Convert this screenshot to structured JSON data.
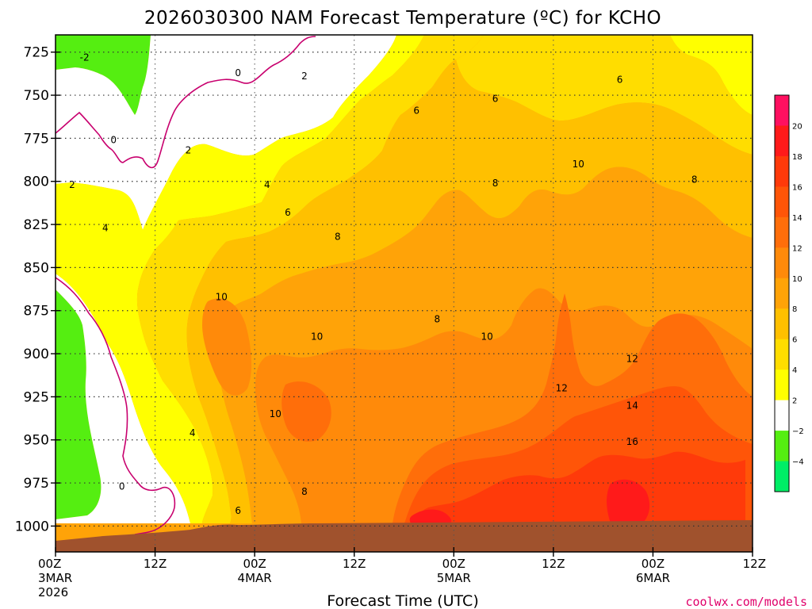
{
  "chart_data": {
    "type": "heatmap",
    "title": "2026030300 NAM Forecast Temperature (ºC) for KCHO",
    "xlabel": "Forecast Time (UTC)",
    "ylabel": "",
    "y_ticks": [
      "725",
      "750",
      "775",
      "800",
      "825",
      "850",
      "875",
      "900",
      "925",
      "950",
      "975",
      "1000"
    ],
    "y_range": [
      715,
      1015
    ],
    "y_unit": "hPa",
    "x_ticks": [
      {
        "hour": 0,
        "label": "00Z",
        "sub1": "3MAR",
        "sub2": "2026"
      },
      {
        "hour": 12,
        "label": "12Z",
        "sub1": "",
        "sub2": ""
      },
      {
        "hour": 24,
        "label": "00Z",
        "sub1": "4MAR",
        "sub2": ""
      },
      {
        "hour": 36,
        "label": "12Z",
        "sub1": "",
        "sub2": ""
      },
      {
        "hour": 48,
        "label": "00Z",
        "sub1": "5MAR",
        "sub2": ""
      },
      {
        "hour": 60,
        "label": "12Z",
        "sub1": "",
        "sub2": ""
      },
      {
        "hour": 72,
        "label": "00Z",
        "sub1": "6MAR",
        "sub2": ""
      },
      {
        "hour": 84,
        "label": "12Z",
        "sub1": "",
        "sub2": ""
      }
    ],
    "x_range": [
      0,
      84
    ],
    "grid": true,
    "colorbar": {
      "labels": [
        "20",
        "18",
        "16",
        "14",
        "12",
        "10",
        "8",
        "6",
        "4",
        "2",
        "−2",
        "−4"
      ],
      "bands": [
        {
          "min": 20,
          "color": "#ff1060"
        },
        {
          "min": 18,
          "color": "#ff1a1a"
        },
        {
          "min": 16,
          "color": "#ff3a0a"
        },
        {
          "min": 14,
          "color": "#ff5508"
        },
        {
          "min": 12,
          "color": "#ff6e0a"
        },
        {
          "min": 10,
          "color": "#ff8a0a"
        },
        {
          "min": 8,
          "color": "#ffa308"
        },
        {
          "min": 6,
          "color": "#ffc000"
        },
        {
          "min": 4,
          "color": "#ffdd00"
        },
        {
          "min": 2,
          "color": "#ffff00"
        },
        {
          "min": -2,
          "color": "#ffffff"
        },
        {
          "min": -4,
          "color": "#55ee11"
        },
        {
          "min": -99,
          "color": "#00ee66"
        }
      ]
    },
    "contour_labels": [
      {
        "text": "-2",
        "hour": 3.5,
        "p": 728
      },
      {
        "text": "0",
        "hour": 22,
        "p": 737
      },
      {
        "text": "0",
        "hour": 7,
        "p": 776
      },
      {
        "text": "0",
        "hour": 8,
        "p": 977
      },
      {
        "text": "2",
        "hour": 30,
        "p": 739
      },
      {
        "text": "2",
        "hour": 16,
        "p": 782
      },
      {
        "text": "2",
        "hour": 2,
        "p": 802
      },
      {
        "text": "4",
        "hour": 25.5,
        "p": 802
      },
      {
        "text": "4",
        "hour": 6,
        "p": 827
      },
      {
        "text": "4",
        "hour": 16.5,
        "p": 946
      },
      {
        "text": "6",
        "hour": 43.5,
        "p": 759
      },
      {
        "text": "6",
        "hour": 53,
        "p": 752
      },
      {
        "text": "6",
        "hour": 68,
        "p": 741
      },
      {
        "text": "6",
        "hour": 28,
        "p": 818
      },
      {
        "text": "6",
        "hour": 22,
        "p": 991
      },
      {
        "text": "8",
        "hour": 53,
        "p": 801
      },
      {
        "text": "8",
        "hour": 77,
        "p": 799
      },
      {
        "text": "8",
        "hour": 34,
        "p": 832
      },
      {
        "text": "8",
        "hour": 46,
        "p": 880
      },
      {
        "text": "8",
        "hour": 30,
        "p": 980
      },
      {
        "text": "10",
        "hour": 63,
        "p": 790
      },
      {
        "text": "10",
        "hour": 20,
        "p": 867
      },
      {
        "text": "10",
        "hour": 31.5,
        "p": 890
      },
      {
        "text": "10",
        "hour": 52,
        "p": 890
      },
      {
        "text": "10",
        "hour": 26.5,
        "p": 935
      },
      {
        "text": "12",
        "hour": 69.5,
        "p": 903
      },
      {
        "text": "12",
        "hour": 61,
        "p": 920
      },
      {
        "text": "14",
        "hour": 69.5,
        "p": 930
      },
      {
        "text": "16",
        "hour": 69.5,
        "p": 951
      }
    ]
  },
  "credit": "coolwx.com/models"
}
